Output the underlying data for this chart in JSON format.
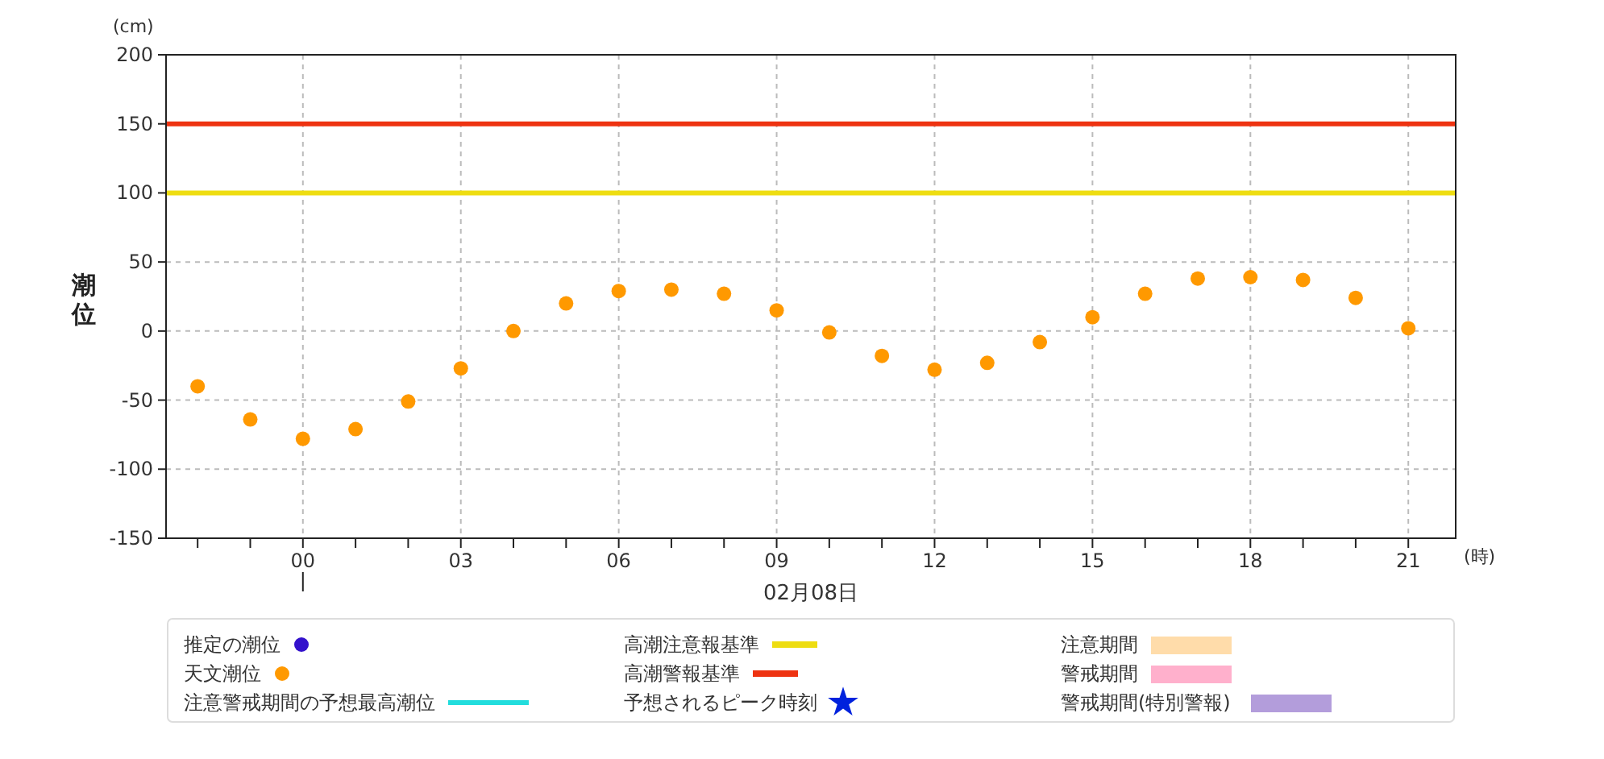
{
  "chart_data": {
    "type": "scatter",
    "xlabel": "02月08日",
    "ylabel": "潮位",
    "annotations": [
      "(cm)",
      "(時)",
      "推定の潮位",
      "注意警戒期間の予想最高潮位",
      "予想されるピーク時刻",
      "注意期間",
      "警戒期間",
      "警戒期間(特別警報)"
    ],
    "x": [
      -2,
      -1,
      0,
      1,
      2,
      3,
      4,
      5,
      6,
      7,
      8,
      9,
      10,
      11,
      12,
      13,
      14,
      15,
      16,
      17,
      18,
      19,
      20,
      21
    ],
    "series": [
      {
        "name": "天文潮位",
        "color": "#ff9900",
        "values": [
          -40,
          -64,
          -78,
          -71,
          -51,
          -27,
          0,
          20,
          29,
          30,
          27,
          15,
          -1,
          -18,
          -28,
          -23,
          -8,
          10,
          27,
          38,
          39,
          37,
          24,
          2
        ]
      }
    ],
    "marker": "circle",
    "ref_lines": [
      {
        "axis": "y",
        "value": 100,
        "label": "高潮注意報基準",
        "color": "#eedd11"
      },
      {
        "axis": "y",
        "value": 150,
        "label": "高潮警報基準",
        "color": "#ee3311"
      }
    ],
    "xlim": [
      -2.6,
      21.9
    ],
    "xticks": [
      {
        "value": -2,
        "label": null
      },
      {
        "value": -1,
        "label": null
      },
      {
        "value": 0,
        "label": "00"
      },
      {
        "value": 1,
        "label": null
      },
      {
        "value": 2,
        "label": null
      },
      {
        "value": 3,
        "label": "03"
      },
      {
        "value": 4,
        "label": null
      },
      {
        "value": 5,
        "label": null
      },
      {
        "value": 6,
        "label": "06"
      },
      {
        "value": 7,
        "label": null
      },
      {
        "value": 8,
        "label": null
      },
      {
        "value": 9,
        "label": "09"
      },
      {
        "value": 10,
        "label": null
      },
      {
        "value": 11,
        "label": null
      },
      {
        "value": 12,
        "label": "12"
      },
      {
        "value": 13,
        "label": null
      },
      {
        "value": 14,
        "label": null
      },
      {
        "value": 15,
        "label": "15"
      },
      {
        "value": 16,
        "label": null
      },
      {
        "value": 17,
        "label": null
      },
      {
        "value": 18,
        "label": "18"
      },
      {
        "value": 19,
        "label": null
      },
      {
        "value": 20,
        "label": null
      },
      {
        "value": 21,
        "label": "21"
      }
    ],
    "ylim": [
      -150,
      200
    ],
    "yticks": [
      -150,
      -100,
      -50,
      0,
      50,
      100,
      150,
      200
    ],
    "grid": true,
    "legend": "bottom"
  }
}
